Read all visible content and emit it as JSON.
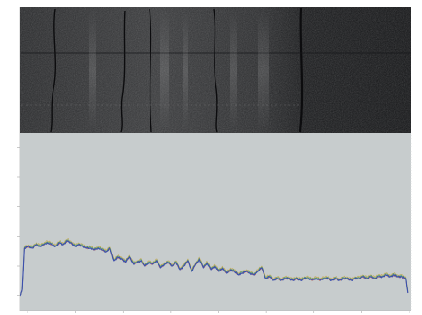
{
  "colors": {
    "page_background": "#ffffff",
    "image_panel_background": "#1c1d1f",
    "plot_background": "#c7cccd",
    "axis": "#a8a8a8",
    "series_colors": [
      "#3b4fb0",
      "#2e9a6a",
      "#c8a23a",
      "#c0503a",
      "#7a4a9a"
    ]
  },
  "chart_data": [
    {
      "type": "image",
      "panel": "core-scan-image",
      "description_visible": false,
      "y_ticks": [
        "",
        "",
        "",
        ""
      ],
      "x_ticks": []
    },
    {
      "type": "line",
      "title": "",
      "xlabel": "",
      "ylabel": "",
      "grid": false,
      "legend": "none",
      "xlim": [
        0,
        1000
      ],
      "ylim": [
        0,
        100
      ],
      "x_ticks": [
        "",
        "",
        "",
        "",
        "",
        "",
        "",
        "",
        ""
      ],
      "y_ticks": [
        "",
        "",
        "",
        "",
        "",
        ""
      ],
      "x": [
        0,
        5,
        10,
        20,
        30,
        40,
        50,
        60,
        70,
        80,
        90,
        100,
        110,
        120,
        130,
        140,
        150,
        160,
        170,
        180,
        190,
        200,
        210,
        220,
        230,
        240,
        250,
        260,
        270,
        280,
        290,
        300,
        310,
        320,
        330,
        340,
        350,
        360,
        370,
        380,
        390,
        400,
        410,
        420,
        430,
        440,
        450,
        460,
        470,
        480,
        490,
        500,
        510,
        520,
        530,
        540,
        550,
        560,
        570,
        580,
        590,
        600,
        610,
        620,
        630,
        640,
        650,
        660,
        670,
        680,
        690,
        700,
        710,
        720,
        730,
        740,
        750,
        760,
        770,
        780,
        790,
        800,
        810,
        820,
        830,
        840,
        850,
        860,
        870,
        880,
        890,
        900,
        910,
        920,
        930,
        940,
        950,
        960,
        970,
        980,
        990,
        995
      ],
      "series": [
        {
          "values": [
            8,
            12,
            35,
            36,
            35,
            37,
            36,
            37,
            38,
            37,
            36,
            38,
            37,
            39,
            38,
            36,
            37,
            36,
            35,
            35,
            34,
            35,
            34,
            33,
            35,
            28,
            30,
            29,
            27,
            30,
            26,
            27,
            28,
            25,
            27,
            26,
            28,
            24,
            26,
            27,
            25,
            27,
            23,
            25,
            28,
            22,
            26,
            29,
            24,
            27,
            23,
            25,
            22,
            24,
            21,
            23,
            22,
            20,
            21,
            22,
            21,
            20,
            22,
            24,
            18,
            19,
            17,
            18,
            17,
            18,
            18,
            17,
            18,
            17,
            18,
            18,
            17,
            18,
            17,
            18,
            18,
            17,
            18,
            17,
            18,
            18,
            17,
            18,
            18,
            19,
            18,
            19,
            18,
            19,
            19,
            20,
            19,
            20,
            19,
            19,
            18,
            10
          ]
        },
        {
          "values": [
            8,
            12,
            35.5,
            36.5,
            35.5,
            37.5,
            36.5,
            37.5,
            38.5,
            37.5,
            36.5,
            38.5,
            37.5,
            39.5,
            38.5,
            36.5,
            37.5,
            36.5,
            35.5,
            35.5,
            34.5,
            35.5,
            34.5,
            33.5,
            35.5,
            28.5,
            30.5,
            29.5,
            27.5,
            30.5,
            26.5,
            27.5,
            28.5,
            25.5,
            27.5,
            26.5,
            28.5,
            24.5,
            26.5,
            27.5,
            25.5,
            27.5,
            23.5,
            25.5,
            28.5,
            22.5,
            26.5,
            29.5,
            24.5,
            27.5,
            23.5,
            25.5,
            22.5,
            24.5,
            21.5,
            23.5,
            22.5,
            20.5,
            21.5,
            22.5,
            21.5,
            20.5,
            22.5,
            24.5,
            18.5,
            19.5,
            17.5,
            18.5,
            17.5,
            18.5,
            18.5,
            17.5,
            18.5,
            17.5,
            18.5,
            18.5,
            17.5,
            18.5,
            17.5,
            18.5,
            18.5,
            17.5,
            18.5,
            17.5,
            18.5,
            18.5,
            17.5,
            18.5,
            18.5,
            19.5,
            18.5,
            19.5,
            18.5,
            19.5,
            19.5,
            20.5,
            19.5,
            20.5,
            19.5,
            19.5,
            18.5,
            10.5
          ]
        },
        {
          "values": [
            8,
            12,
            36,
            37,
            36,
            38,
            37,
            38,
            39,
            38,
            37,
            39,
            38,
            40,
            39,
            37,
            38,
            37,
            36,
            36,
            35,
            36,
            35,
            34,
            36,
            29,
            31,
            30,
            28,
            31,
            27,
            28,
            29,
            26,
            28,
            27,
            29,
            25,
            27,
            28,
            26,
            28,
            24,
            26,
            29,
            23,
            27,
            30,
            25,
            28,
            24,
            26,
            23,
            25,
            22,
            24,
            23,
            21,
            22,
            23,
            22,
            21,
            23,
            25,
            19,
            20,
            18,
            19,
            18,
            19,
            19,
            18,
            19,
            18,
            19,
            19,
            18,
            19,
            18,
            19,
            19,
            18,
            19,
            18,
            19,
            19,
            18,
            19,
            19,
            20,
            19,
            20,
            19,
            20,
            20,
            21,
            20,
            21,
            20,
            20,
            19,
            11
          ]
        },
        {
          "values": [
            8,
            12,
            35,
            36,
            35,
            37,
            36,
            37,
            38,
            37,
            36,
            38,
            37,
            39,
            38,
            36,
            37,
            36,
            35,
            35,
            34,
            35,
            34,
            33,
            35,
            28,
            30,
            29,
            27,
            30,
            26,
            27,
            28,
            25,
            27,
            26,
            28,
            24,
            26,
            27,
            25,
            27,
            23,
            25,
            28,
            22,
            26,
            29,
            24,
            27,
            23,
            25,
            22,
            24,
            21,
            23,
            22,
            20,
            21,
            22,
            21,
            20,
            22,
            24,
            18,
            19,
            17,
            18,
            17,
            18,
            18,
            17,
            18,
            17,
            18,
            18,
            17,
            18,
            17,
            18,
            18,
            17,
            18,
            17,
            18,
            18,
            17,
            18,
            18,
            19,
            18,
            19,
            18,
            19,
            19,
            20,
            19,
            20,
            19,
            19,
            18,
            10
          ]
        }
      ]
    }
  ]
}
